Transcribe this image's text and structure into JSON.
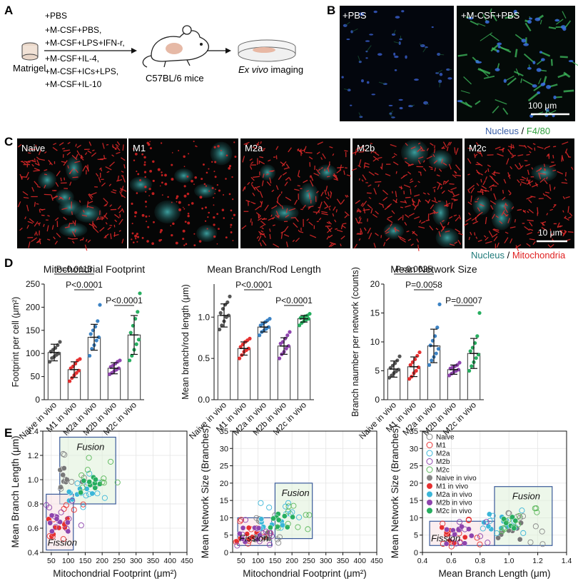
{
  "panel_letters": {
    "a": "A",
    "b": "B",
    "c": "C",
    "d": "D",
    "e": "E"
  },
  "panel_a": {
    "matrigel": "Matrigel",
    "treatments": [
      "+PBS",
      "+M-CSF+PBS,",
      "+M-CSF+LPS+IFN-r,",
      "+M-CSF+IL-4,",
      "+M-CSF+ICs+LPS,",
      "+M-CSF+IL-10"
    ],
    "mice": "C57BL/6 mice",
    "imaging_prefix": "Ex vivo",
    "imaging_suffix": " imaging"
  },
  "panel_b": {
    "labels": [
      "+PBS",
      "+M-CSF+PBS"
    ],
    "scale_bar": "100 μm",
    "stain_1": "Nucleus",
    "stain_sep": " / ",
    "stain_2": "F4/80",
    "colors": {
      "nucleus": "#3a5fa8",
      "f480": "#2e9e3c"
    }
  },
  "panel_c": {
    "labels": [
      "Naive",
      "M1",
      "M2a",
      "M2b",
      "M2c"
    ],
    "scale_bar": "10 μm",
    "stain_1": "Nucleus",
    "stain_sep": " / ",
    "stain_2": "Mitochondria",
    "colors": {
      "nucleus": "#1f7a7a",
      "mito": "#e02020"
    }
  },
  "chart_data": [
    {
      "type": "bar",
      "title": "Mitochondrial Footprint",
      "ylabel": "Footprint per cell (μm²)",
      "categories": [
        "Naive in vivo",
        "M1 in vivo",
        "M2a in vivo",
        "M2b in vivo",
        "M2c in vivo"
      ],
      "values": [
        102,
        65,
        135,
        68,
        140
      ],
      "sd": [
        18,
        17,
        28,
        12,
        42
      ],
      "ylim": [
        0,
        250
      ],
      "yticks": [
        "0",
        "50",
        "100",
        "150",
        "200",
        "250"
      ],
      "point_colors": [
        "#555555",
        "#e63030",
        "#3b82c4",
        "#8e44ad",
        "#27ae60"
      ],
      "points": [
        [
          82,
          90,
          93,
          97,
          100,
          104,
          108,
          112,
          118,
          125
        ],
        [
          40,
          47,
          53,
          58,
          63,
          68,
          72,
          78,
          85,
          88
        ],
        [
          95,
          110,
          118,
          128,
          135,
          142,
          150,
          158,
          170,
          205
        ],
        [
          55,
          58,
          62,
          65,
          68,
          71,
          74,
          78,
          82,
          85
        ],
        [
          85,
          95,
          108,
          120,
          130,
          145,
          160,
          175,
          190,
          230
        ]
      ],
      "brackets": [
        {
          "from": 0,
          "to": 2,
          "label": "P=0.0113",
          "level": 0
        },
        {
          "from": 1,
          "to": 2,
          "label": "P<0.0001",
          "level": 1
        },
        {
          "from": 3,
          "to": 4,
          "label": "P<0.0001",
          "level": 2
        }
      ]
    },
    {
      "type": "bar",
      "title": "Mean Branch/Rod Length",
      "ylabel": "Mean branch/rod length (μm)",
      "categories": [
        "Naive in vivo",
        "M1 in vivo",
        "M2a in vivo",
        "M2b in vivo",
        "M2c in vivo"
      ],
      "values": [
        1.02,
        0.62,
        0.88,
        0.65,
        0.98
      ],
      "sd": [
        0.14,
        0.08,
        0.06,
        0.1,
        0.04
      ],
      "ylim": [
        0,
        1.4
      ],
      "yticks": [
        "0.0",
        "0.5",
        "1.0"
      ],
      "point_colors": [
        "#555555",
        "#e63030",
        "#3b82c4",
        "#8e44ad",
        "#27ae60"
      ],
      "points": [
        [
          0.85,
          0.9,
          0.95,
          1.0,
          1.02,
          1.05,
          1.1,
          1.15,
          1.18,
          1.25
        ],
        [
          0.5,
          0.54,
          0.58,
          0.6,
          0.62,
          0.64,
          0.67,
          0.7,
          0.72,
          0.74
        ],
        [
          0.78,
          0.82,
          0.84,
          0.86,
          0.88,
          0.9,
          0.92,
          0.94,
          0.96,
          0.98
        ],
        [
          0.5,
          0.55,
          0.58,
          0.62,
          0.65,
          0.68,
          0.7,
          0.74,
          0.78,
          0.82
        ],
        [
          0.9,
          0.93,
          0.95,
          0.97,
          0.98,
          0.99,
          1.0,
          1.01,
          1.02,
          1.04
        ]
      ],
      "brackets": [
        {
          "from": 1,
          "to": 2,
          "label": "P<0.0001",
          "level": 0
        },
        {
          "from": 3,
          "to": 4,
          "label": "P<0.0001",
          "level": 1
        }
      ]
    },
    {
      "type": "bar",
      "title": "Mean Network Size",
      "ylabel": "Branch naumber per network (counts)",
      "categories": [
        "Naive in vivo",
        "M1 in vivo",
        "M2a in vivo",
        "M2b in vivo",
        "M2c in vivo"
      ],
      "values": [
        5.3,
        5.7,
        9.3,
        5.2,
        8.0
      ],
      "sd": [
        1.4,
        1.7,
        2.9,
        0.8,
        2.6
      ],
      "ylim": [
        0,
        20
      ],
      "yticks": [
        "0",
        "5",
        "10",
        "15",
        "20"
      ],
      "point_colors": [
        "#555555",
        "#e63030",
        "#3b82c4",
        "#8e44ad",
        "#27ae60"
      ],
      "points": [
        [
          3.8,
          4.2,
          4.6,
          4.9,
          5.2,
          5.5,
          5.9,
          6.3,
          6.8,
          7.5
        ],
        [
          3.6,
          4.0,
          4.6,
          5.0,
          5.6,
          6.0,
          6.5,
          7.0,
          7.6,
          8.2
        ],
        [
          6.0,
          6.8,
          7.4,
          8.0,
          8.8,
          9.4,
          10.2,
          11.0,
          12.5,
          16.5
        ],
        [
          4.2,
          4.5,
          4.8,
          5.0,
          5.2,
          5.4,
          5.6,
          5.8,
          6.0,
          6.4
        ],
        [
          5.0,
          5.8,
          6.5,
          7.2,
          7.8,
          8.4,
          9.0,
          9.8,
          11.0,
          15.0
        ]
      ],
      "brackets": [
        {
          "from": 0,
          "to": 2,
          "label": "P=0.0025",
          "level": 0
        },
        {
          "from": 1,
          "to": 2,
          "label": "P=0.0058",
          "level": 1
        },
        {
          "from": 3,
          "to": 4,
          "label": "P=0.0007",
          "level": 2
        }
      ]
    },
    {
      "type": "scatter",
      "xlabel": "Mitochondrial Footprint (μm²)",
      "ylabel": "Mean Branch Length (μm)",
      "xlim": [
        25,
        450
      ],
      "ylim": [
        0.4,
        1.4
      ],
      "xticks": [
        "50",
        "100",
        "150",
        "200",
        "250",
        "300",
        "350",
        "400",
        "450"
      ],
      "yticks": [
        "0.4",
        "0.6",
        "0.8",
        "1.0",
        "1.2",
        "1.4"
      ],
      "regions": [
        {
          "name": "Fusion",
          "x": [
            75,
            240
          ],
          "y": [
            0.8,
            1.35
          ]
        },
        {
          "name": "Fission",
          "x": [
            35,
            115
          ],
          "y": [
            0.42,
            0.88
          ]
        }
      ]
    },
    {
      "type": "scatter",
      "xlabel": "Mitochondrial Footprint (μm²)",
      "ylabel": "Mean Network Size (Branches)",
      "xlim": [
        25,
        450
      ],
      "ylim": [
        0,
        35
      ],
      "xticks": [
        "50",
        "100",
        "150",
        "200",
        "250",
        "300",
        "350",
        "400",
        "450"
      ],
      "yticks": [
        "0",
        "5",
        "10",
        "15",
        "20",
        "25",
        "30",
        "35"
      ],
      "regions": [
        {
          "name": "Fusion",
          "x": [
            150,
            260
          ],
          "y": [
            4,
            20
          ]
        },
        {
          "name": "Fission",
          "x": [
            40,
            140
          ],
          "y": [
            2,
            10
          ]
        }
      ]
    },
    {
      "type": "scatter",
      "xlabel": "Mean Branch Length (μm)",
      "ylabel": "Mean Network Size (Branches)",
      "xlim": [
        0.4,
        1.4
      ],
      "ylim": [
        0,
        35
      ],
      "xticks": [
        "0.4",
        "0.6",
        "0.8",
        "1.0",
        "1.2",
        "1.4"
      ],
      "yticks": [
        "0",
        "5",
        "10",
        "15",
        "20",
        "25",
        "30",
        "35"
      ],
      "legend_position": "top-left",
      "legend": [
        {
          "name": "Naive",
          "color": "#888888",
          "filled": false
        },
        {
          "name": "M1",
          "color": "#e63030",
          "filled": false
        },
        {
          "name": "M2a",
          "color": "#3bb6d8",
          "filled": false
        },
        {
          "name": "M2b",
          "color": "#8e44ad",
          "filled": false
        },
        {
          "name": "M2c",
          "color": "#5cb85c",
          "filled": false
        },
        {
          "name": "Naive in vivo",
          "color": "#888888",
          "filled": true
        },
        {
          "name": "M1 in vivo",
          "color": "#e63030",
          "filled": true
        },
        {
          "name": "M2a in vivo",
          "color": "#3bb6d8",
          "filled": true
        },
        {
          "name": "M2b in vivo",
          "color": "#8e44ad",
          "filled": true
        },
        {
          "name": "M2c in vivo",
          "color": "#27ae60",
          "filled": true
        }
      ],
      "regions": [
        {
          "name": "Fusion",
          "x": [
            0.9,
            1.3
          ],
          "y": [
            2,
            19
          ]
        },
        {
          "name": "Fission",
          "x": [
            0.45,
            0.9
          ],
          "y": [
            2,
            9
          ]
        }
      ]
    }
  ],
  "scatter_groups": {
    "colors": {
      "Naive": "#888888",
      "M1": "#e63030",
      "M2a": "#3bb6d8",
      "M2b": "#8e44ad",
      "M2c": "#5cb85c"
    },
    "filled_colors": {
      "Naive": "#777777",
      "M1": "#e63030",
      "M2a": "#3bb6d8",
      "M2b": "#8e44ad",
      "M2c": "#27ae60"
    }
  }
}
